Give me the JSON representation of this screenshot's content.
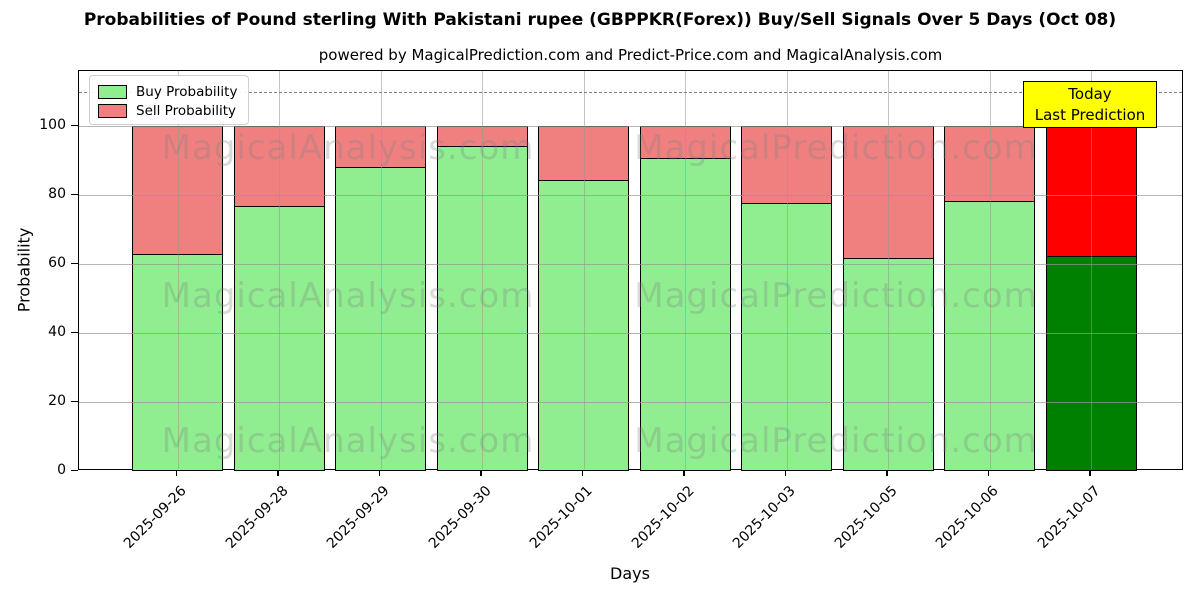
{
  "header": {
    "title": "Probabilities of Pound sterling With Pakistani rupee (GBPPKR(Forex)) Buy/Sell Signals Over 5 Days (Oct 08)",
    "subtitle": "powered by MagicalPrediction.com and Predict-Price.com and MagicalAnalysis.com"
  },
  "legend": {
    "items": [
      {
        "label": "Buy Probability",
        "color": "#90EE90"
      },
      {
        "label": "Sell Probability",
        "color": "#F08080"
      }
    ]
  },
  "today_box": {
    "line1": "Today",
    "line2": "Last Prediction",
    "bg_color": "#FFFF00"
  },
  "watermarks": {
    "left_text": "MagicalAnalysis.com",
    "right_text": "MagicalPrediction.com"
  },
  "axes": {
    "x_label": "Days",
    "y_label": "Probability",
    "y_ticks": [
      0,
      20,
      40,
      60,
      80,
      100
    ]
  },
  "colors": {
    "buy": "#90EE90",
    "sell": "#F08080",
    "buy_today": "#008000",
    "sell_today": "#FF0000",
    "grid": "#b0b0b0",
    "dashed_line": "#7f7f7f"
  },
  "chart_data": {
    "type": "bar",
    "stacked": true,
    "title": "Probabilities of Pound sterling With Pakistani rupee (GBPPKR(Forex)) Buy/Sell Signals Over 5 Days (Oct 08)",
    "xlabel": "Days",
    "ylabel": "Probability",
    "ylim": [
      0,
      116
    ],
    "grid": true,
    "legend_position": "upper left",
    "dashed_threshold_y": 110,
    "categories": [
      "2025-09-26",
      "2025-09-28",
      "2025-09-29",
      "2025-09-30",
      "2025-10-01",
      "2025-10-02",
      "2025-10-03",
      "2025-10-05",
      "2025-10-06",
      "2025-10-07"
    ],
    "series": [
      {
        "name": "Buy Probability",
        "values": [
          62.5,
          76.5,
          88,
          94,
          84,
          90.5,
          77.5,
          61.5,
          78,
          62
        ]
      },
      {
        "name": "Sell Probability",
        "values": [
          37.5,
          23.5,
          12,
          6,
          16,
          9.5,
          22.5,
          38.5,
          22,
          38
        ]
      }
    ],
    "today_index": 9,
    "today_annotation": "Today Last Prediction"
  }
}
